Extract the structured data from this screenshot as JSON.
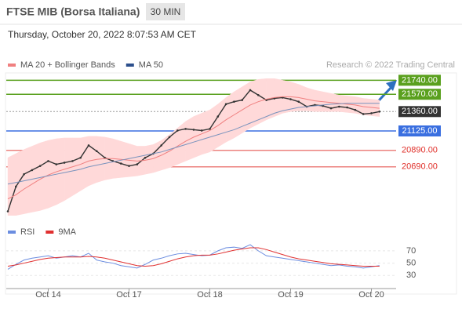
{
  "header": {
    "title": "FTSE MIB (Borsa Italiana)",
    "interval": "30 MIN",
    "datetime": "Thursday, October 20, 2022 8:07:53 AM CET"
  },
  "chart_data": [
    {
      "type": "line",
      "credit": "Research © 2022 Trading Central",
      "ylim": [
        20050,
        21810
      ],
      "series": [
        {
          "color": "#333333",
          "values": [
            20150,
            20450,
            20600,
            20650,
            20700,
            20760,
            20720,
            20740,
            20760,
            20800,
            20950,
            20880,
            20800,
            20760,
            20730,
            20700,
            20720,
            20800,
            20850,
            20950,
            21050,
            21130,
            21150,
            21140,
            21130,
            21150,
            21300,
            21450,
            21480,
            21500,
            21620,
            21560,
            21500,
            21520,
            21530,
            21510,
            21480,
            21420,
            21440,
            21430,
            21400,
            21420,
            21410,
            21380,
            21330,
            21340,
            21360
          ]
        },
        {
          "name": "MA 20 + Bollinger Bands",
          "color": "#f08080",
          "band_color": "#ffd9d9",
          "values": [
            20300,
            20350,
            20420,
            20480,
            20540,
            20590,
            20630,
            20660,
            20690,
            20720,
            20760,
            20780,
            20790,
            20790,
            20780,
            20770,
            20760,
            20770,
            20790,
            20830,
            20880,
            20940,
            21000,
            21050,
            21090,
            21130,
            21190,
            21260,
            21320,
            21380,
            21440,
            21480,
            21510,
            21530,
            21540,
            21540,
            21530,
            21510,
            21490,
            21480,
            21470,
            21460,
            21450,
            21440,
            21420,
            21410,
            21400
          ],
          "upper": [
            20800,
            20850,
            20900,
            20940,
            20980,
            21010,
            21030,
            21040,
            21040,
            21040,
            21060,
            21060,
            21050,
            21030,
            21000,
            20970,
            20940,
            20940,
            20960,
            21010,
            21080,
            21160,
            21240,
            21300,
            21340,
            21380,
            21450,
            21530,
            21600,
            21660,
            21720,
            21750,
            21760,
            21760,
            21740,
            21720,
            21690,
            21650,
            21620,
            21600,
            21580,
            21560,
            21550,
            21540,
            21520,
            21510,
            21500
          ],
          "lower": [
            20100,
            20100,
            20120,
            20140,
            20160,
            20190,
            20230,
            20280,
            20340,
            20400,
            20460,
            20500,
            20530,
            20550,
            20560,
            20570,
            20580,
            20600,
            20620,
            20650,
            20680,
            20720,
            20760,
            20800,
            20840,
            20870,
            20930,
            20990,
            21040,
            21100,
            21160,
            21210,
            21260,
            21300,
            21340,
            21360,
            21370,
            21370,
            21360,
            21360,
            21360,
            21360,
            21350,
            21340,
            21320,
            21310,
            21300
          ]
        },
        {
          "name": "MA 50",
          "color": "#7a93bd",
          "legend_color": "#2c4f8c",
          "values": [
            20480,
            20500,
            20520,
            20540,
            20560,
            20580,
            20600,
            20620,
            20640,
            20660,
            20690,
            20710,
            20730,
            20750,
            20770,
            20790,
            20810,
            20830,
            20850,
            20870,
            20900,
            20930,
            20960,
            20990,
            21020,
            21050,
            21080,
            21110,
            21140,
            21180,
            21220,
            21260,
            21300,
            21340,
            21370,
            21390,
            21410,
            21420,
            21430,
            21440,
            21450,
            21455,
            21460,
            21460,
            21460,
            21460,
            21460
          ]
        }
      ],
      "levels": [
        {
          "value": 21740,
          "label": "21740.00",
          "color": "#5aa01e",
          "boxed": true
        },
        {
          "value": 21570,
          "label": "21570.00",
          "color": "#5aa01e",
          "boxed": true
        },
        {
          "value": 21360,
          "label": "21360.00",
          "color": "#333333",
          "boxed": true,
          "dashed": true
        },
        {
          "value": 21125,
          "label": "21125.00",
          "color": "#3a6fe0",
          "boxed": true
        },
        {
          "value": 20890,
          "label": "20890.00",
          "color": "#e0302a",
          "boxed": false
        },
        {
          "value": 20690,
          "label": "20690.00",
          "color": "#e0302a",
          "boxed": false
        }
      ]
    },
    {
      "type": "line",
      "categories": [
        null,
        null,
        null,
        null,
        null,
        "Oct 14",
        null,
        null,
        null,
        null,
        null,
        null,
        null,
        null,
        null,
        "Oct 17",
        null,
        null,
        null,
        null,
        null,
        null,
        null,
        null,
        null,
        "Oct 18",
        null,
        null,
        null,
        null,
        null,
        null,
        null,
        null,
        null,
        "Oct 19",
        null,
        null,
        null,
        null,
        null,
        null,
        null,
        null,
        null,
        "Oct 20",
        null
      ],
      "ylim": [
        15,
        89
      ],
      "yticks": [
        30,
        50,
        70
      ],
      "series": [
        {
          "name": "RSI",
          "color": "#6b8de0",
          "values": [
            40,
            48,
            55,
            58,
            60,
            62,
            58,
            60,
            62,
            60,
            66,
            55,
            52,
            50,
            46,
            44,
            42,
            48,
            55,
            58,
            62,
            65,
            66,
            64,
            62,
            63,
            70,
            75,
            76,
            74,
            80,
            70,
            62,
            60,
            58,
            56,
            54,
            52,
            50,
            48,
            46,
            47,
            45,
            44,
            42,
            44,
            46
          ]
        },
        {
          "name": "9MA",
          "color": "#e03030",
          "values": [
            45,
            47,
            50,
            53,
            56,
            58,
            59,
            60,
            60,
            60,
            61,
            60,
            58,
            55,
            52,
            49,
            46,
            45,
            46,
            49,
            53,
            57,
            60,
            62,
            63,
            63,
            65,
            68,
            71,
            73,
            75,
            75,
            72,
            68,
            64,
            60,
            57,
            55,
            53,
            51,
            49,
            48,
            47,
            46,
            45,
            45,
            45
          ]
        }
      ]
    }
  ]
}
